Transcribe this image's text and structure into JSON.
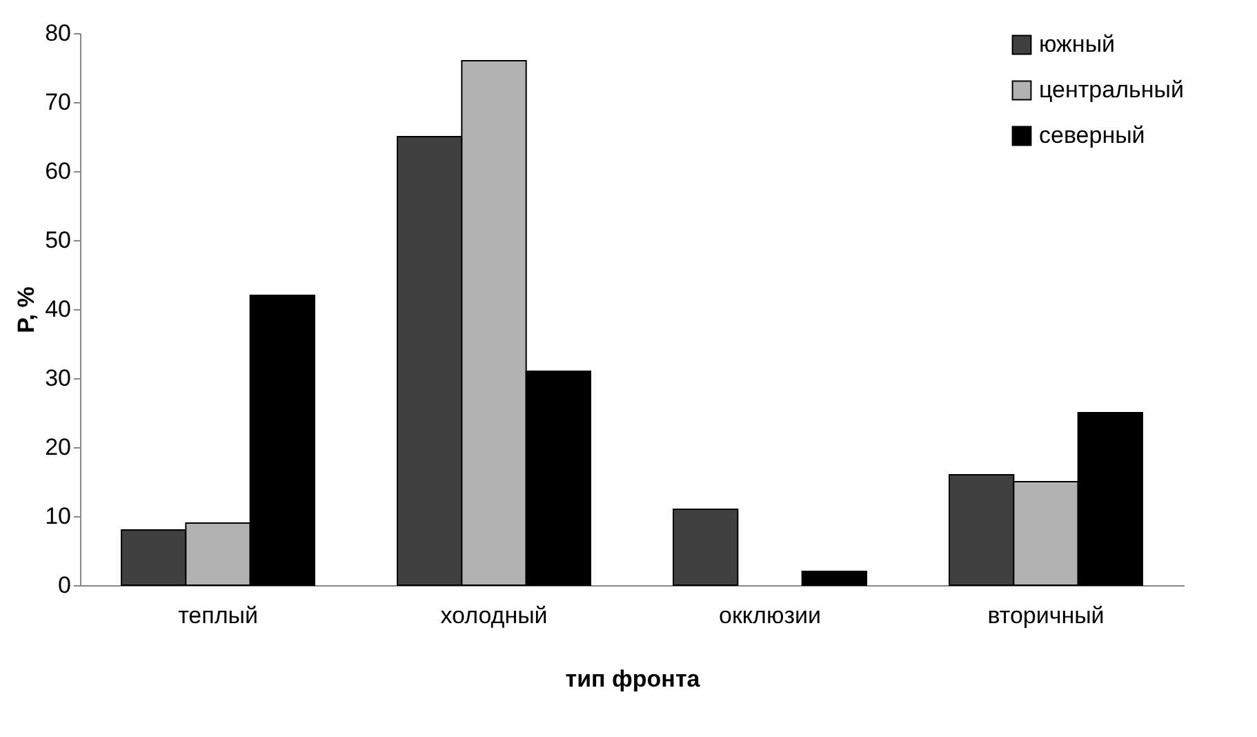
{
  "chart_data": {
    "type": "bar",
    "xlabel": "тип фронта",
    "ylabel": "P, %",
    "categories": [
      "теплый",
      "холодный",
      "окклюзии",
      "вторичный"
    ],
    "series": [
      {
        "name": "южный",
        "color": "#404040",
        "values": [
          8,
          65,
          11,
          16
        ]
      },
      {
        "name": "центральный",
        "color": "#b2b2b2",
        "values": [
          9,
          76,
          null,
          15
        ]
      },
      {
        "name": "северный",
        "color": "#000000",
        "values": [
          42,
          31,
          2,
          25
        ]
      }
    ],
    "ylim": [
      0,
      80
    ],
    "yticks": [
      0,
      10,
      20,
      30,
      40,
      50,
      60,
      70,
      80
    ],
    "grid": false,
    "legend": "top right"
  }
}
